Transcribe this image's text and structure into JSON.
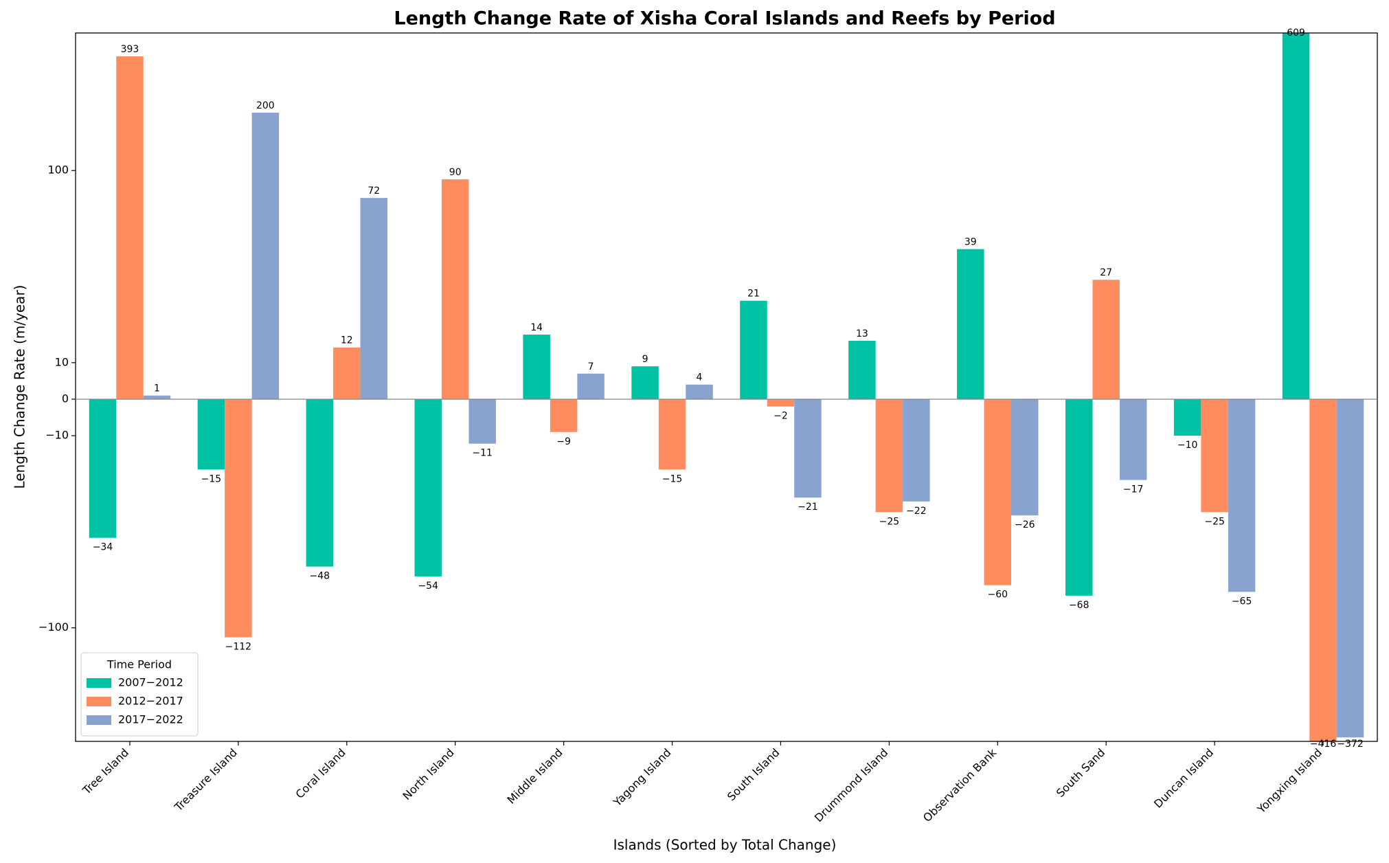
{
  "chart_data": {
    "type": "bar",
    "title": "Length Change Rate of Xisha Coral Islands and Reefs by Period",
    "xlabel": "Islands (Sorted by Total Change)",
    "ylabel": "Length Change Rate  (m/year)",
    "categories": [
      "Tree Island",
      "Treasure Island",
      "Coral Island",
      "North Island",
      "Middle Island",
      "Yagong Island",
      "South Island",
      "Drummond Island",
      "Observation Bank",
      "South Sand",
      "Duncan Island",
      "Yongxing Island"
    ],
    "series": [
      {
        "name": "2007−2012",
        "color": "#00c1a3",
        "values": [
          -34,
          -15,
          -48,
          -54,
          14,
          9,
          21,
          13,
          39,
          -68,
          -10,
          609
        ],
        "value_labels": [
          "−34",
          "−15",
          "−48",
          "−54",
          "14",
          "9",
          "21",
          "13",
          "39",
          "−68",
          "−10",
          "609"
        ]
      },
      {
        "name": "2012−2017",
        "color": "#ff8c5f",
        "values": [
          393,
          -112,
          12,
          90,
          -9,
          -15,
          -2,
          -25,
          -60,
          27,
          -25,
          -416
        ],
        "value_labels": [
          "393",
          "−112",
          "12",
          "90",
          "−9",
          "−15",
          "−2",
          "−25",
          "−60",
          "27",
          "−25",
          "−416"
        ]
      },
      {
        "name": "2017−2022",
        "color": "#88a3cf",
        "values": [
          1,
          200,
          72,
          -11,
          7,
          4,
          -21,
          -22,
          -26,
          -17,
          -65,
          -372
        ],
        "value_labels": [
          "1",
          "200",
          "72",
          "−11",
          "7",
          "4",
          "−21",
          "−22",
          "−26",
          "−17",
          "−65",
          "−372"
        ]
      }
    ],
    "yscale": "symlog",
    "linthresh": 10,
    "linscale": 0.19,
    "ylim": [
      -390,
      520
    ],
    "yticks": [
      {
        "value": -100,
        "label": "−100"
      },
      {
        "value": -10,
        "label": "−10"
      },
      0,
      10,
      100
    ],
    "legend_title": "Time Period",
    "legend": "lower left"
  }
}
